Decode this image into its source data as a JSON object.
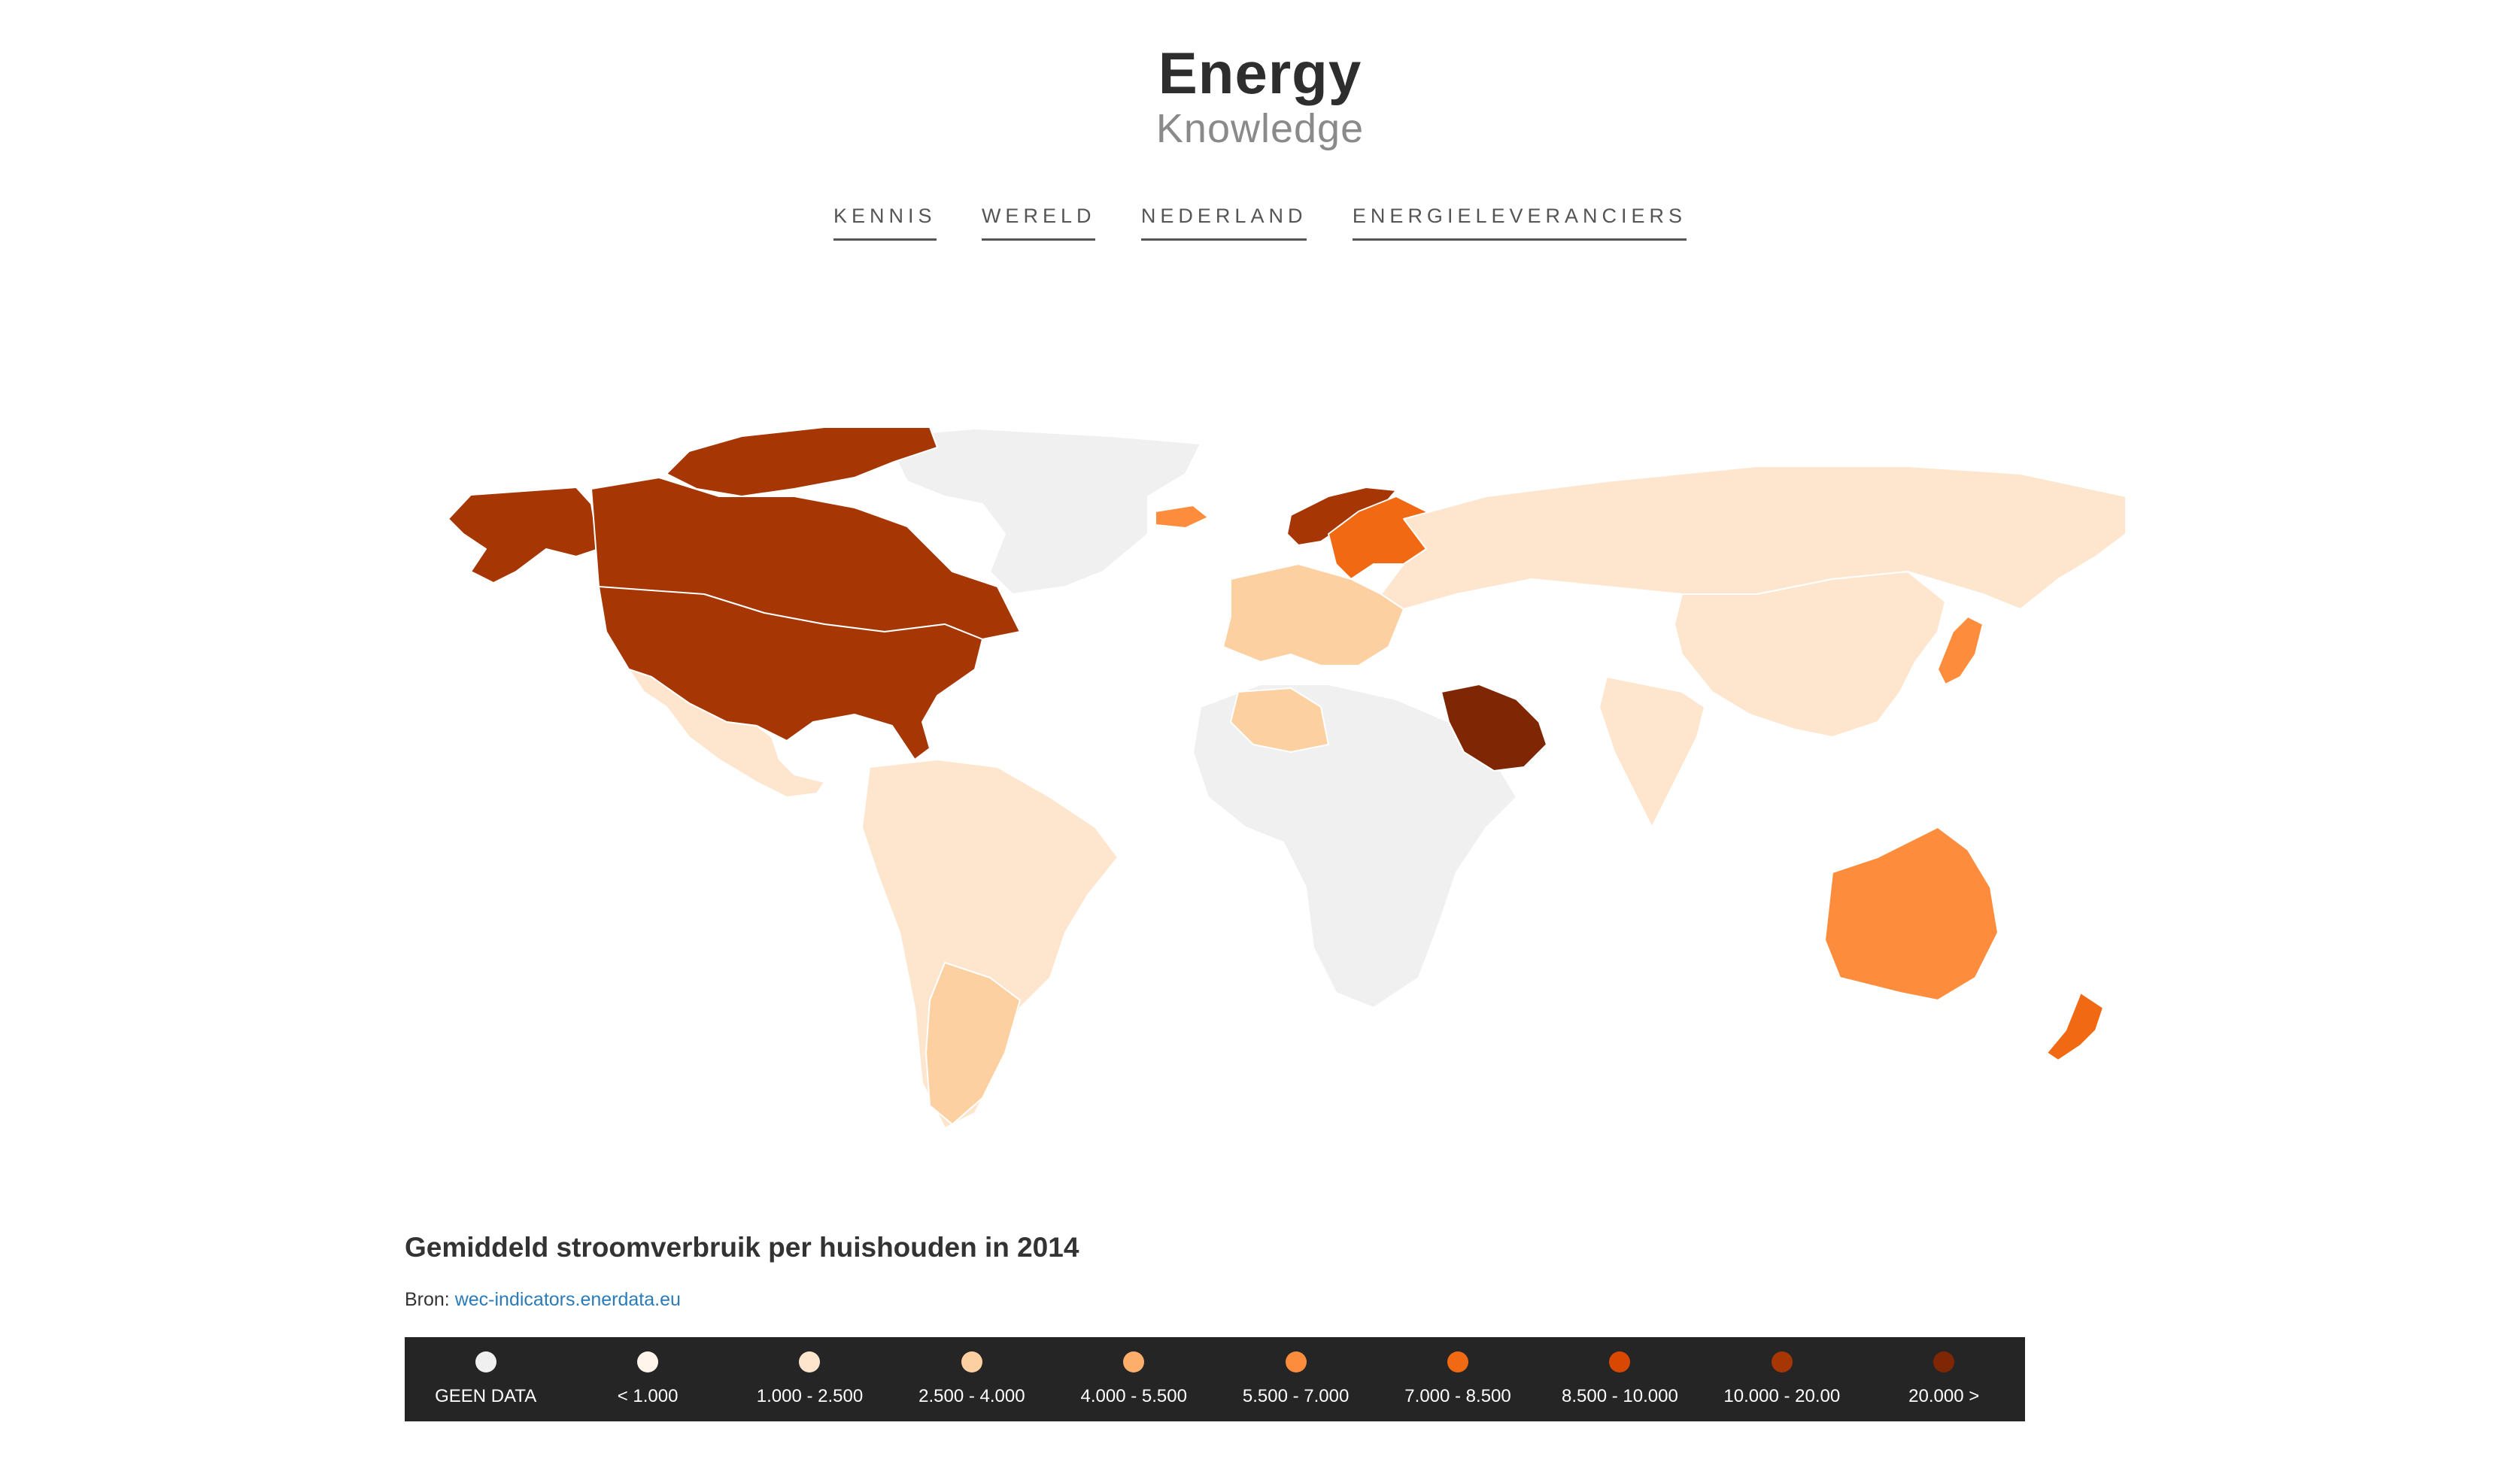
{
  "header": {
    "title": "Energy",
    "subtitle": "Knowledge"
  },
  "nav": {
    "items": [
      "KENNIS",
      "WERELD",
      "NEDERLAND",
      "ENERGIELEVERANCIERS"
    ]
  },
  "map": {
    "colors": {
      "none": "#f0f0f0",
      "c1": "#fff5eb",
      "c2": "#fee6ce",
      "c3": "#fdd0a2",
      "c4": "#fdae6b",
      "c5": "#fd8d3c",
      "c6": "#f16913",
      "c7": "#d94801",
      "c8": "#a63603",
      "c9": "#7f2704"
    },
    "regions": [
      {
        "name": "canada",
        "bin": "c8"
      },
      {
        "name": "usa",
        "bin": "c8"
      },
      {
        "name": "alaska",
        "bin": "c8"
      },
      {
        "name": "canadian-arctic",
        "bin": "c8"
      },
      {
        "name": "greenland",
        "bin": "none"
      },
      {
        "name": "mexico",
        "bin": "c2"
      },
      {
        "name": "south-america",
        "bin": "c2"
      },
      {
        "name": "argentina",
        "bin": "c3"
      },
      {
        "name": "iceland",
        "bin": "c5"
      },
      {
        "name": "norway",
        "bin": "c8"
      },
      {
        "name": "sweden-finland",
        "bin": "c6"
      },
      {
        "name": "western-europe",
        "bin": "c3"
      },
      {
        "name": "russia",
        "bin": "c2"
      },
      {
        "name": "africa",
        "bin": "none"
      },
      {
        "name": "algeria",
        "bin": "c3"
      },
      {
        "name": "saudi-arabia",
        "bin": "c9"
      },
      {
        "name": "china",
        "bin": "c2"
      },
      {
        "name": "india",
        "bin": "c2"
      },
      {
        "name": "japan",
        "bin": "c5"
      },
      {
        "name": "australia",
        "bin": "c5"
      },
      {
        "name": "new-zealand",
        "bin": "c6"
      }
    ]
  },
  "caption": "Gemiddeld stroomverbruik per huishouden in 2014",
  "source": {
    "label": "Bron:",
    "link_text": "wec-indicators.enerdata.eu"
  },
  "legend": {
    "items": [
      {
        "label": "GEEN DATA",
        "color": "#f0f0f0"
      },
      {
        "label": "< 1.000",
        "color": "#fff5eb"
      },
      {
        "label": "1.000 - 2.500",
        "color": "#fee6ce"
      },
      {
        "label": "2.500 - 4.000",
        "color": "#fdd0a2"
      },
      {
        "label": "4.000 - 5.500",
        "color": "#fdae6b"
      },
      {
        "label": "5.500 - 7.000",
        "color": "#fd8d3c"
      },
      {
        "label": "7.000 - 8.500",
        "color": "#f16913"
      },
      {
        "label": "8.500 - 10.000",
        "color": "#d94801"
      },
      {
        "label": "10.000 - 20.00",
        "color": "#a63603"
      },
      {
        "label": "20.000 >",
        "color": "#7f2704"
      }
    ]
  }
}
